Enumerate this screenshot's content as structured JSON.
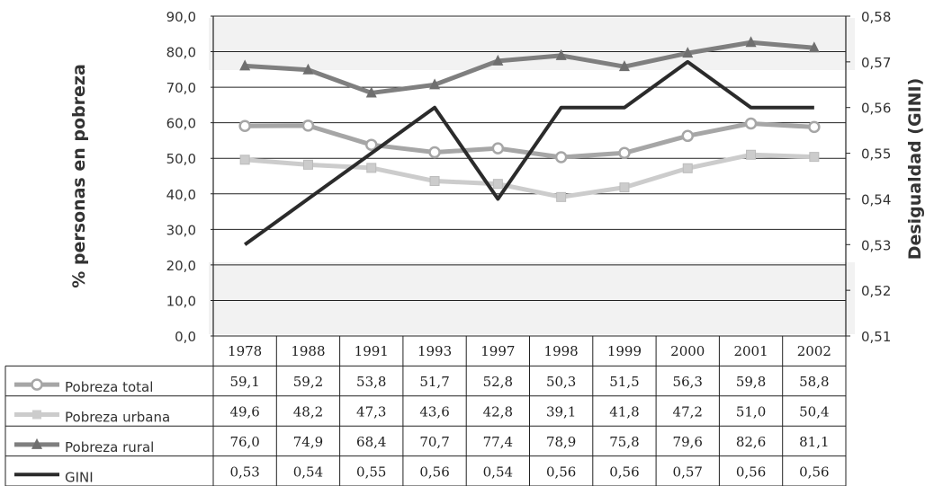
{
  "chart_data": {
    "type": "line",
    "categories": [
      "1978",
      "1988",
      "1991",
      "1993",
      "1997",
      "1998",
      "1999",
      "2000",
      "2001",
      "2002"
    ],
    "y_left": {
      "label": "% personas en pobreza",
      "ylim": [
        0,
        90
      ],
      "ticks": [
        "0,0",
        "10,0",
        "20,0",
        "30,0",
        "40,0",
        "50,0",
        "60,0",
        "70,0",
        "80,0",
        "90,0"
      ]
    },
    "y_right": {
      "label": "Desigualdad (GINI)",
      "ylim": [
        0.51,
        0.58
      ],
      "ticks": [
        "0,51",
        "0,52",
        "0,53",
        "0,54",
        "0,55",
        "0,56",
        "0,57",
        "0,58"
      ]
    },
    "series": [
      {
        "name": "Pobreza total",
        "axis": "left",
        "marker": "circle",
        "color": "#a6a6a6",
        "values": [
          59.1,
          59.2,
          53.8,
          51.7,
          52.8,
          50.3,
          51.5,
          56.3,
          59.8,
          58.8
        ],
        "labels": [
          "59,1",
          "59,2",
          "53,8",
          "51,7",
          "52,8",
          "50,3",
          "51,5",
          "56,3",
          "59,8",
          "58,8"
        ]
      },
      {
        "name": "Pobreza urbana",
        "axis": "left",
        "marker": "square",
        "color": "#cccccc",
        "values": [
          49.6,
          48.2,
          47.3,
          43.6,
          42.8,
          39.1,
          41.8,
          47.2,
          51.0,
          50.4
        ],
        "labels": [
          "49,6",
          "48,2",
          "47,3",
          "43,6",
          "42,8",
          "39,1",
          "41,8",
          "47,2",
          "51,0",
          "50,4"
        ]
      },
      {
        "name": "Pobreza rural",
        "axis": "left",
        "marker": "triangle",
        "color": "#7f7f7f",
        "values": [
          76.0,
          74.9,
          68.4,
          70.7,
          77.4,
          78.9,
          75.8,
          79.6,
          82.6,
          81.1
        ],
        "labels": [
          "76,0",
          "74,9",
          "68,4",
          "70,7",
          "77,4",
          "78,9",
          "75,8",
          "79,6",
          "82,6",
          "81,1"
        ]
      },
      {
        "name": "GINI",
        "axis": "right",
        "marker": "none",
        "color": "#2b2b2b",
        "values": [
          0.53,
          0.54,
          0.55,
          0.56,
          0.54,
          0.56,
          0.56,
          0.57,
          0.56,
          0.56
        ],
        "labels": [
          "0,53",
          "0,54",
          "0,55",
          "0,56",
          "0,54",
          "0,56",
          "0,56",
          "0,57",
          "0,56",
          "0,56"
        ]
      }
    ],
    "grid": true,
    "data_table": true
  }
}
